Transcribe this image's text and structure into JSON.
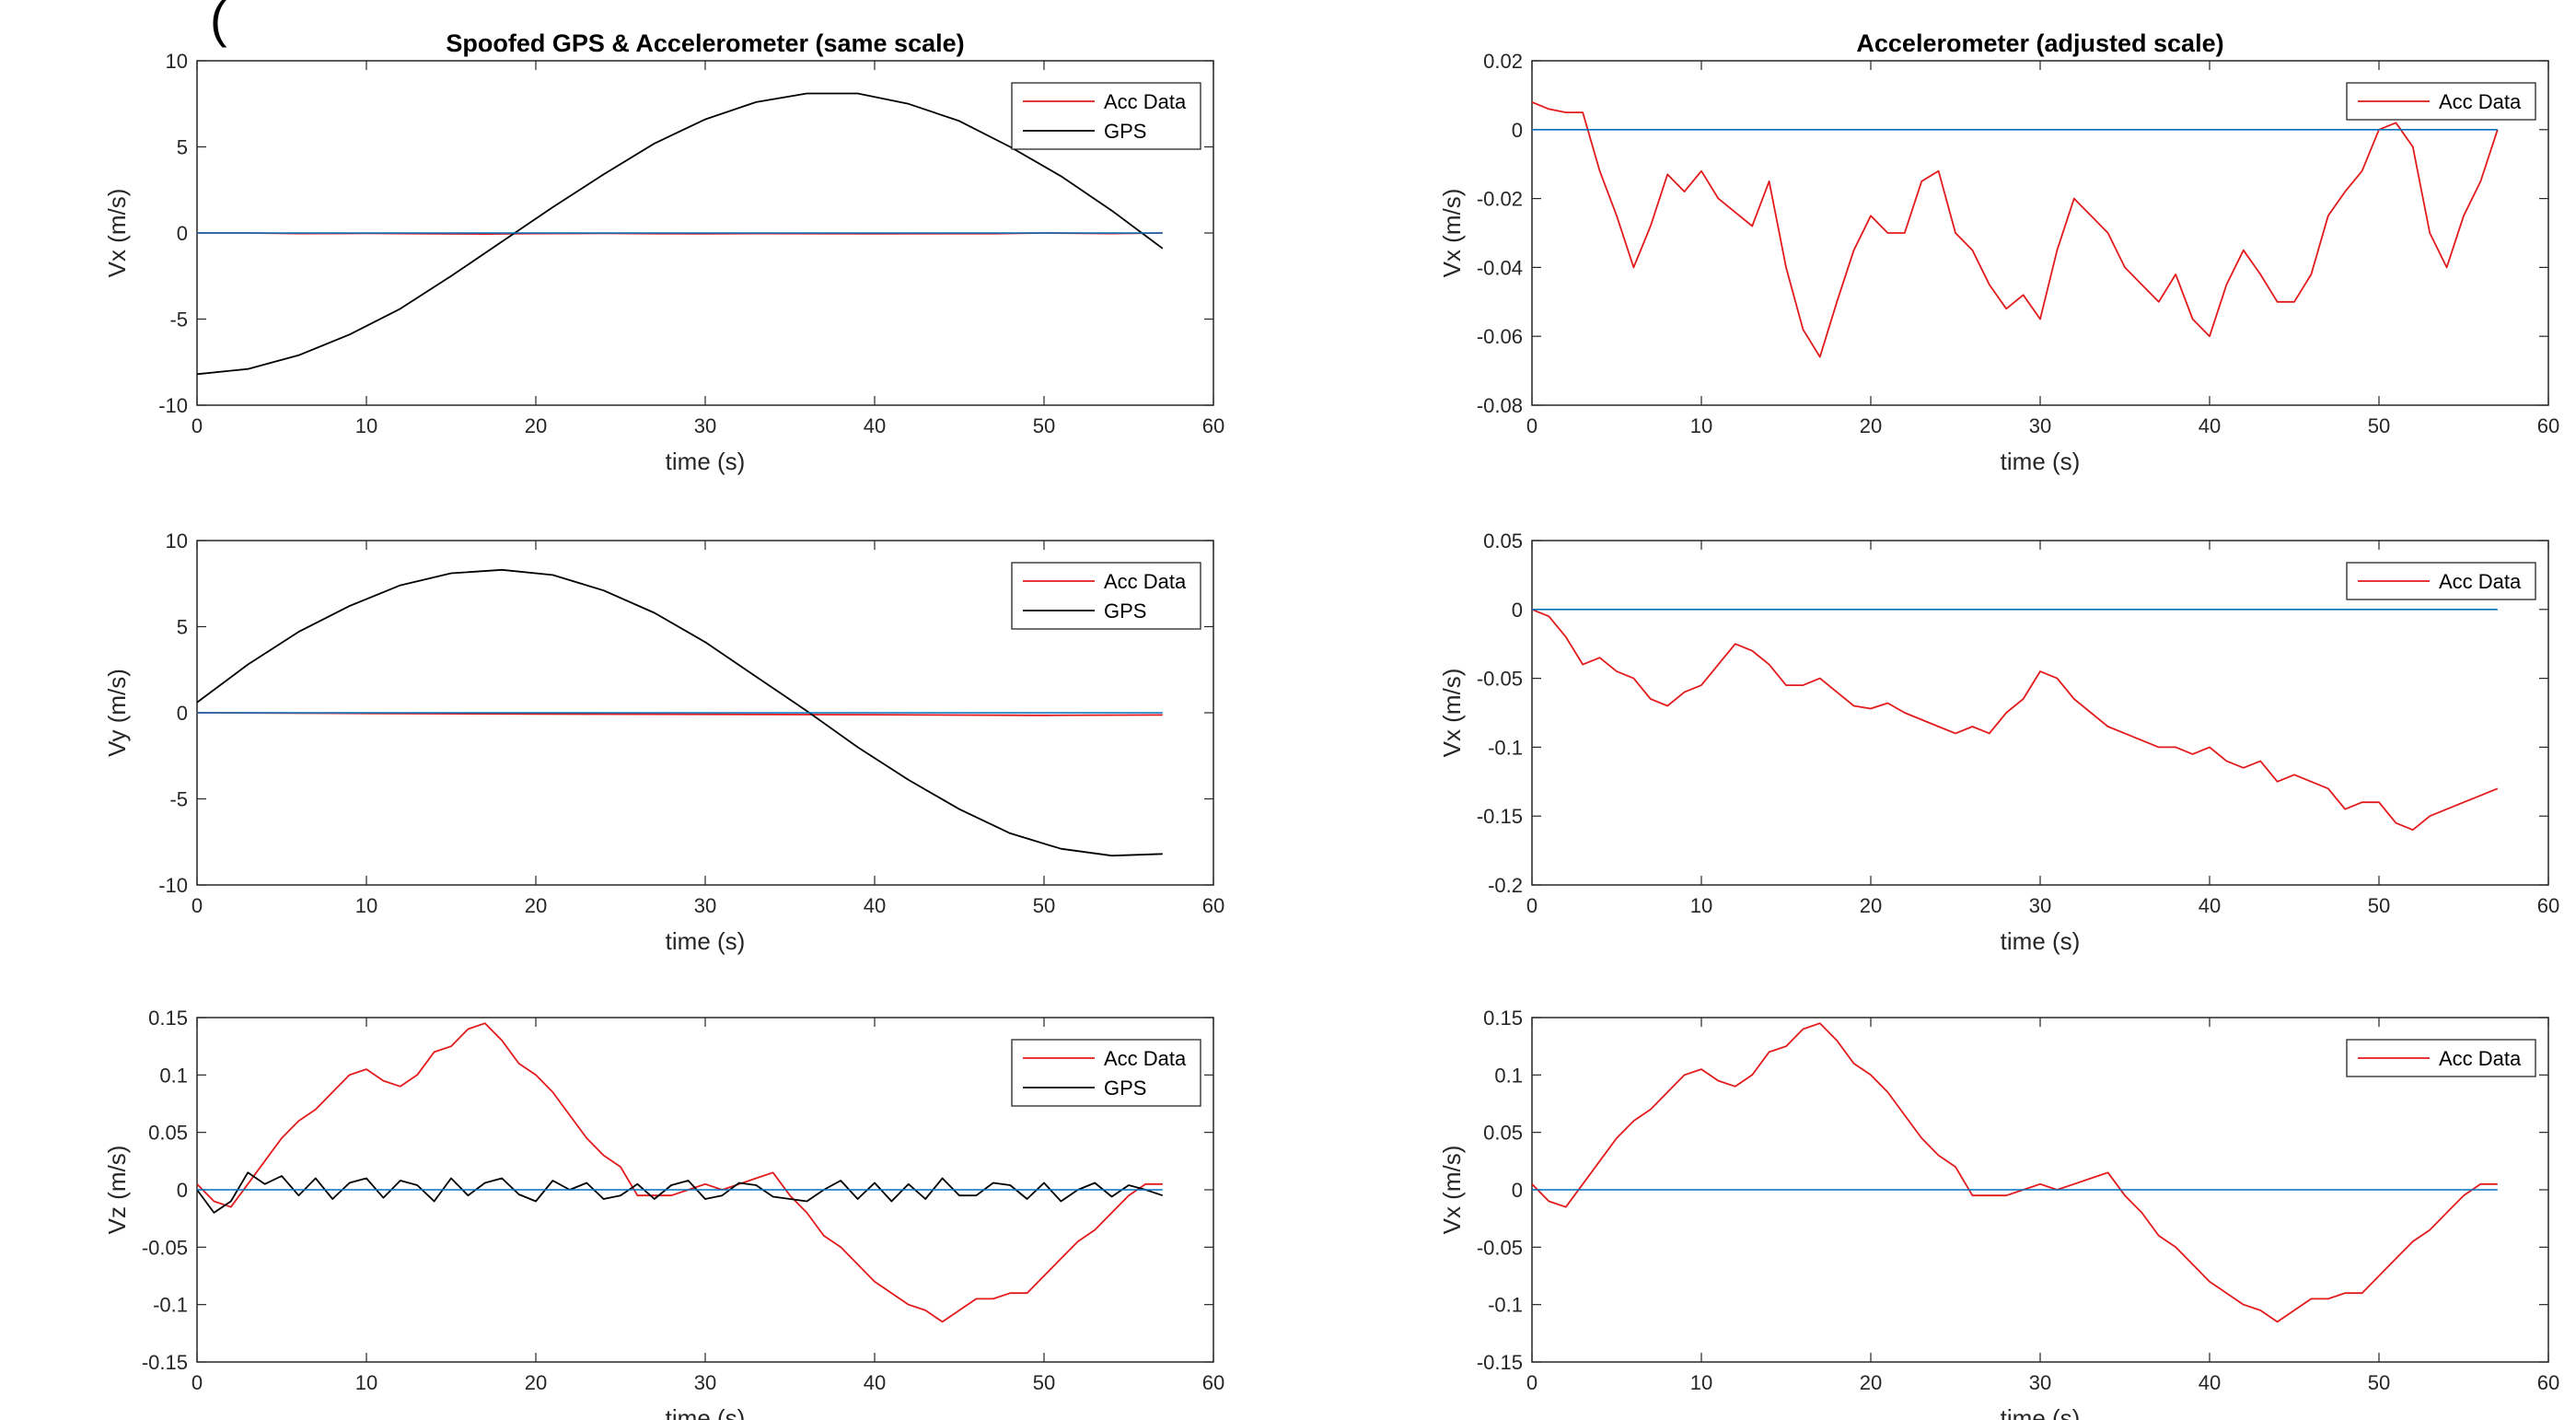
{
  "figure_header": "(",
  "colors": {
    "acc": "#e31a1c",
    "gps": "#000000",
    "reference": "#0072bd",
    "axis": "#262626",
    "legend_border": "#262626"
  },
  "chart_data": [
    {
      "type": "line",
      "title": "Spoofed GPS & Accelerometer (same scale)",
      "xlabel": "time (s)",
      "ylabel": "Vx (m/s)",
      "xlim": [
        0,
        60
      ],
      "ylim": [
        -10,
        10
      ],
      "xticks": [
        0,
        10,
        20,
        30,
        40,
        50,
        60
      ],
      "yticks": [
        -10,
        -5,
        0,
        5,
        10
      ],
      "grid": false,
      "legend_position": "top-right",
      "series": [
        {
          "name": "Acc Data",
          "color": "#e31a1c",
          "legend": true,
          "x": [
            0,
            3,
            6,
            10,
            14,
            17,
            20,
            24,
            27,
            30,
            33,
            37,
            40,
            44,
            47,
            50,
            54,
            57
          ],
          "y": [
            0.0,
            0.0,
            -0.03,
            -0.02,
            -0.05,
            -0.06,
            -0.03,
            -0.02,
            -0.04,
            -0.05,
            -0.03,
            -0.04,
            -0.05,
            -0.04,
            -0.04,
            0.0,
            -0.03,
            0.0
          ]
        },
        {
          "name": "GPS",
          "color": "#000000",
          "legend": true,
          "x": [
            0,
            3,
            6,
            9,
            12,
            15,
            18,
            21,
            24,
            27,
            30,
            33,
            36,
            39,
            42,
            45,
            48,
            51,
            54,
            57
          ],
          "y": [
            -8.2,
            -7.9,
            -7.1,
            -5.9,
            -4.4,
            -2.5,
            -0.5,
            1.5,
            3.4,
            5.2,
            6.6,
            7.6,
            8.1,
            8.1,
            7.5,
            6.5,
            5.0,
            3.3,
            1.3,
            -0.9
          ]
        },
        {
          "name": "",
          "color": "#0072bd",
          "legend": false,
          "x": [
            0,
            57
          ],
          "y": [
            0,
            0
          ]
        }
      ]
    },
    {
      "type": "line",
      "title": "Accelerometer (adjusted scale)",
      "xlabel": "time (s)",
      "ylabel": "Vx (m/s)",
      "xlim": [
        0,
        60
      ],
      "ylim": [
        -0.08,
        0.02
      ],
      "xticks": [
        0,
        10,
        20,
        30,
        40,
        50,
        60
      ],
      "yticks": [
        -0.08,
        -0.06,
        -0.04,
        -0.02,
        0,
        0.02
      ],
      "grid": false,
      "legend_position": "top-right",
      "series": [
        {
          "name": "Acc Data",
          "color": "#e31a1c",
          "legend": true,
          "x": [
            0,
            1,
            2,
            3,
            4,
            5,
            6,
            7,
            8,
            9,
            10,
            11,
            12,
            13,
            14,
            15,
            16,
            17,
            18,
            19,
            20,
            21,
            22,
            23,
            24,
            25,
            26,
            27,
            28,
            29,
            30,
            31,
            32,
            33,
            34,
            35,
            36,
            37,
            38,
            39,
            40,
            41,
            42,
            43,
            44,
            45,
            46,
            47,
            48,
            49,
            50,
            51,
            52,
            53,
            54,
            55,
            56,
            57
          ],
          "y": [
            0.008,
            0.006,
            0.005,
            0.005,
            -0.012,
            -0.025,
            -0.04,
            -0.028,
            -0.013,
            -0.018,
            -0.012,
            -0.02,
            -0.024,
            -0.028,
            -0.015,
            -0.04,
            -0.058,
            -0.066,
            -0.05,
            -0.035,
            -0.025,
            -0.03,
            -0.03,
            -0.015,
            -0.012,
            -0.03,
            -0.035,
            -0.045,
            -0.052,
            -0.048,
            -0.055,
            -0.035,
            -0.02,
            -0.025,
            -0.03,
            -0.04,
            -0.045,
            -0.05,
            -0.042,
            -0.055,
            -0.06,
            -0.045,
            -0.035,
            -0.042,
            -0.05,
            -0.05,
            -0.042,
            -0.025,
            -0.018,
            -0.012,
            0.0,
            0.002,
            -0.005,
            -0.03,
            -0.04,
            -0.025,
            -0.015,
            0.0
          ]
        },
        {
          "name": "",
          "color": "#0072bd",
          "legend": false,
          "x": [
            0,
            57
          ],
          "y": [
            0,
            0
          ]
        }
      ]
    },
    {
      "type": "line",
      "title": "",
      "xlabel": "time (s)",
      "ylabel": "Vy (m/s)",
      "xlim": [
        0,
        60
      ],
      "ylim": [
        -10,
        10
      ],
      "xticks": [
        0,
        10,
        20,
        30,
        40,
        50,
        60
      ],
      "yticks": [
        -10,
        -5,
        0,
        5,
        10
      ],
      "grid": false,
      "legend_position": "top-right",
      "series": [
        {
          "name": "Acc Data",
          "color": "#e31a1c",
          "legend": true,
          "x": [
            0,
            10,
            20,
            30,
            40,
            50,
            57
          ],
          "y": [
            0.0,
            -0.04,
            -0.07,
            -0.09,
            -0.11,
            -0.15,
            -0.13
          ]
        },
        {
          "name": "GPS",
          "color": "#000000",
          "legend": true,
          "x": [
            0,
            3,
            6,
            9,
            12,
            15,
            18,
            21,
            24,
            27,
            30,
            33,
            36,
            39,
            42,
            45,
            48,
            51,
            54,
            57
          ],
          "y": [
            0.6,
            2.8,
            4.7,
            6.2,
            7.4,
            8.1,
            8.3,
            8.0,
            7.1,
            5.8,
            4.1,
            2.1,
            0.1,
            -2.0,
            -3.9,
            -5.6,
            -7.0,
            -7.9,
            -8.3,
            -8.2
          ]
        },
        {
          "name": "",
          "color": "#0072bd",
          "legend": false,
          "x": [
            0,
            57
          ],
          "y": [
            0,
            0
          ]
        }
      ]
    },
    {
      "type": "line",
      "title": "",
      "xlabel": "time (s)",
      "ylabel": "Vx (m/s)",
      "xlim": [
        0,
        60
      ],
      "ylim": [
        -0.2,
        0.05
      ],
      "xticks": [
        0,
        10,
        20,
        30,
        40,
        50,
        60
      ],
      "yticks": [
        -0.2,
        -0.15,
        -0.1,
        -0.05,
        0,
        0.05
      ],
      "grid": false,
      "legend_position": "top-right",
      "series": [
        {
          "name": "Acc Data",
          "color": "#e31a1c",
          "legend": true,
          "x": [
            0,
            1,
            2,
            3,
            4,
            5,
            6,
            7,
            8,
            9,
            10,
            11,
            12,
            13,
            14,
            15,
            16,
            17,
            18,
            19,
            20,
            21,
            22,
            23,
            24,
            25,
            26,
            27,
            28,
            29,
            30,
            31,
            32,
            33,
            34,
            35,
            36,
            37,
            38,
            39,
            40,
            41,
            42,
            43,
            44,
            45,
            46,
            47,
            48,
            49,
            50,
            51,
            52,
            53,
            54,
            55,
            56,
            57
          ],
          "y": [
            0.0,
            -0.005,
            -0.02,
            -0.04,
            -0.035,
            -0.045,
            -0.05,
            -0.065,
            -0.07,
            -0.06,
            -0.055,
            -0.04,
            -0.025,
            -0.03,
            -0.04,
            -0.055,
            -0.055,
            -0.05,
            -0.06,
            -0.07,
            -0.072,
            -0.068,
            -0.075,
            -0.08,
            -0.085,
            -0.09,
            -0.085,
            -0.09,
            -0.075,
            -0.065,
            -0.045,
            -0.05,
            -0.065,
            -0.075,
            -0.085,
            -0.09,
            -0.095,
            -0.1,
            -0.1,
            -0.105,
            -0.1,
            -0.11,
            -0.115,
            -0.11,
            -0.125,
            -0.12,
            -0.125,
            -0.13,
            -0.145,
            -0.14,
            -0.14,
            -0.155,
            -0.16,
            -0.15,
            -0.145,
            -0.14,
            -0.135,
            -0.13
          ]
        },
        {
          "name": "",
          "color": "#0072bd",
          "legend": false,
          "x": [
            0,
            57
          ],
          "y": [
            0,
            0
          ]
        }
      ]
    },
    {
      "type": "line",
      "title": "",
      "xlabel": "time (s)",
      "ylabel": "Vz (m/s)",
      "xlim": [
        0,
        60
      ],
      "ylim": [
        -0.15,
        0.15
      ],
      "xticks": [
        0,
        10,
        20,
        30,
        40,
        50,
        60
      ],
      "yticks": [
        -0.15,
        -0.1,
        -0.05,
        0,
        0.05,
        0.1,
        0.15
      ],
      "grid": false,
      "legend_position": "top-right",
      "series": [
        {
          "name": "Acc Data",
          "color": "#e31a1c",
          "legend": true,
          "x": [
            0,
            1,
            2,
            3,
            4,
            5,
            6,
            7,
            8,
            9,
            10,
            11,
            12,
            13,
            14,
            15,
            16,
            17,
            18,
            19,
            20,
            21,
            22,
            23,
            24,
            25,
            26,
            27,
            28,
            29,
            30,
            31,
            32,
            33,
            34,
            35,
            36,
            37,
            38,
            39,
            40,
            41,
            42,
            43,
            44,
            45,
            46,
            47,
            48,
            49,
            50,
            51,
            52,
            53,
            54,
            55,
            56,
            57
          ],
          "y": [
            0.005,
            -0.01,
            -0.015,
            0.005,
            0.025,
            0.045,
            0.06,
            0.07,
            0.085,
            0.1,
            0.105,
            0.095,
            0.09,
            0.1,
            0.12,
            0.125,
            0.14,
            0.145,
            0.13,
            0.11,
            0.1,
            0.085,
            0.065,
            0.045,
            0.03,
            0.02,
            -0.005,
            -0.005,
            -0.005,
            0.0,
            0.005,
            0.0,
            0.005,
            0.01,
            0.015,
            -0.005,
            -0.02,
            -0.04,
            -0.05,
            -0.065,
            -0.08,
            -0.09,
            -0.1,
            -0.105,
            -0.115,
            -0.105,
            -0.095,
            -0.095,
            -0.09,
            -0.09,
            -0.075,
            -0.06,
            -0.045,
            -0.035,
            -0.02,
            -0.005,
            0.005,
            0.005
          ]
        },
        {
          "name": "GPS",
          "color": "#000000",
          "legend": true,
          "x": [
            0,
            1,
            2,
            3,
            4,
            5,
            6,
            7,
            8,
            9,
            10,
            11,
            12,
            13,
            14,
            15,
            16,
            17,
            18,
            19,
            20,
            21,
            22,
            23,
            24,
            25,
            26,
            27,
            28,
            29,
            30,
            31,
            32,
            33,
            34,
            35,
            36,
            37,
            38,
            39,
            40,
            41,
            42,
            43,
            44,
            45,
            46,
            47,
            48,
            49,
            50,
            51,
            52,
            53,
            54,
            55,
            56,
            57
          ],
          "y": [
            0.0,
            -0.02,
            -0.01,
            0.015,
            0.005,
            0.012,
            -0.005,
            0.01,
            -0.008,
            0.006,
            0.01,
            -0.007,
            0.008,
            0.004,
            -0.01,
            0.01,
            -0.005,
            0.006,
            0.01,
            -0.004,
            -0.01,
            0.008,
            0.0,
            0.006,
            -0.008,
            -0.005,
            0.005,
            -0.008,
            0.004,
            0.008,
            -0.008,
            -0.005,
            0.006,
            0.004,
            -0.006,
            -0.008,
            -0.01,
            0.0,
            0.008,
            -0.008,
            0.006,
            -0.01,
            0.005,
            -0.008,
            0.01,
            -0.005,
            -0.005,
            0.006,
            0.004,
            -0.008,
            0.006,
            -0.01,
            0.0,
            0.006,
            -0.006,
            0.004,
            0.0,
            -0.005
          ]
        },
        {
          "name": "",
          "color": "#0072bd",
          "legend": false,
          "x": [
            0,
            57
          ],
          "y": [
            0,
            0
          ]
        }
      ]
    },
    {
      "type": "line",
      "title": "",
      "xlabel": "time (s)",
      "ylabel": "Vx (m/s)",
      "xlim": [
        0,
        60
      ],
      "ylim": [
        -0.15,
        0.15
      ],
      "xticks": [
        0,
        10,
        20,
        30,
        40,
        50,
        60
      ],
      "yticks": [
        -0.15,
        -0.1,
        -0.05,
        0,
        0.05,
        0.1,
        0.15
      ],
      "grid": false,
      "legend_position": "top-right",
      "series": [
        {
          "name": "Acc Data",
          "color": "#e31a1c",
          "legend": true,
          "x": [
            0,
            1,
            2,
            3,
            4,
            5,
            6,
            7,
            8,
            9,
            10,
            11,
            12,
            13,
            14,
            15,
            16,
            17,
            18,
            19,
            20,
            21,
            22,
            23,
            24,
            25,
            26,
            27,
            28,
            29,
            30,
            31,
            32,
            33,
            34,
            35,
            36,
            37,
            38,
            39,
            40,
            41,
            42,
            43,
            44,
            45,
            46,
            47,
            48,
            49,
            50,
            51,
            52,
            53,
            54,
            55,
            56,
            57
          ],
          "y": [
            0.005,
            -0.01,
            -0.015,
            0.005,
            0.025,
            0.045,
            0.06,
            0.07,
            0.085,
            0.1,
            0.105,
            0.095,
            0.09,
            0.1,
            0.12,
            0.125,
            0.14,
            0.145,
            0.13,
            0.11,
            0.1,
            0.085,
            0.065,
            0.045,
            0.03,
            0.02,
            -0.005,
            -0.005,
            -0.005,
            0.0,
            0.005,
            0.0,
            0.005,
            0.01,
            0.015,
            -0.005,
            -0.02,
            -0.04,
            -0.05,
            -0.065,
            -0.08,
            -0.09,
            -0.1,
            -0.105,
            -0.115,
            -0.105,
            -0.095,
            -0.095,
            -0.09,
            -0.09,
            -0.075,
            -0.06,
            -0.045,
            -0.035,
            -0.02,
            -0.005,
            0.005,
            0.005
          ]
        },
        {
          "name": "",
          "color": "#0072bd",
          "legend": false,
          "x": [
            0,
            57
          ],
          "y": [
            0,
            0
          ]
        }
      ]
    }
  ]
}
